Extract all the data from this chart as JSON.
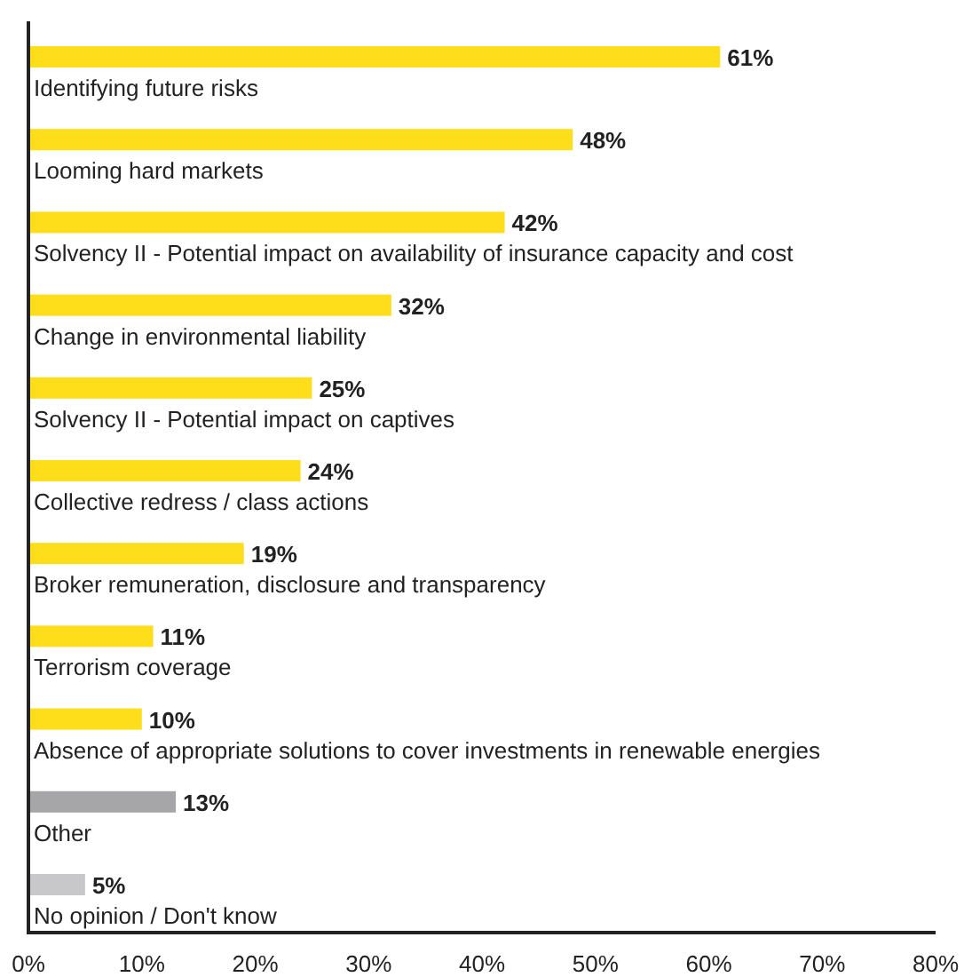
{
  "chart_data": {
    "type": "bar",
    "orientation": "horizontal",
    "categories": [
      "Identifying future risks",
      "Looming hard markets",
      "Solvency II - Potential impact on availability of insurance capacity and cost",
      "Change in environmental liability",
      "Solvency II - Potential impact on captives",
      "Collective redress / class actions",
      "Broker remuneration, disclosure and transparency",
      "Terrorism coverage",
      "Absence of appropriate solutions to cover investments in renewable energies",
      "Other",
      "No opinion / Don't know"
    ],
    "values": [
      61,
      48,
      42,
      32,
      25,
      24,
      19,
      11,
      10,
      13,
      5
    ],
    "colors": [
      "#fedd1a",
      "#fedd1a",
      "#fedd1a",
      "#fedd1a",
      "#fedd1a",
      "#fedd1a",
      "#fedd1a",
      "#fedd1a",
      "#fedd1a",
      "#a6a6a8",
      "#c8c8ca"
    ],
    "value_labels": [
      "61%",
      "48%",
      "42%",
      "32%",
      "25%",
      "24%",
      "19%",
      "11%",
      "10%",
      "13%",
      "5%"
    ],
    "xlim": [
      0,
      80
    ],
    "xticks": [
      {
        "value": 0,
        "label": "0%"
      },
      {
        "value": 10,
        "label": "10%"
      },
      {
        "value": 20,
        "label": "20%"
      },
      {
        "value": 30,
        "label": "30%"
      },
      {
        "value": 40,
        "label": "40%"
      },
      {
        "value": 50,
        "label": "50%"
      },
      {
        "value": 60,
        "label": "60%"
      },
      {
        "value": 70,
        "label": "70%"
      },
      {
        "value": 80,
        "label": "80%"
      }
    ],
    "grid": false
  }
}
